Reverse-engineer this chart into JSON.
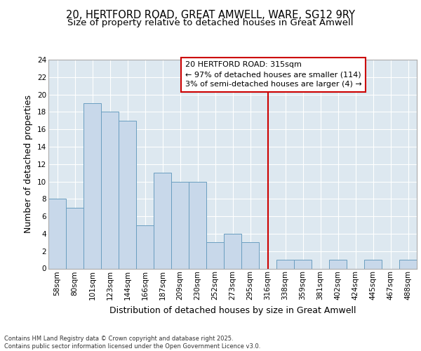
{
  "title1": "20, HERTFORD ROAD, GREAT AMWELL, WARE, SG12 9RY",
  "title2": "Size of property relative to detached houses in Great Amwell",
  "xlabel": "Distribution of detached houses by size in Great Amwell",
  "ylabel": "Number of detached properties",
  "categories": [
    "58sqm",
    "80sqm",
    "101sqm",
    "123sqm",
    "144sqm",
    "166sqm",
    "187sqm",
    "209sqm",
    "230sqm",
    "252sqm",
    "273sqm",
    "295sqm",
    "316sqm",
    "338sqm",
    "359sqm",
    "381sqm",
    "402sqm",
    "424sqm",
    "445sqm",
    "467sqm",
    "488sqm"
  ],
  "values": [
    8,
    7,
    19,
    18,
    17,
    5,
    11,
    10,
    10,
    3,
    4,
    3,
    0,
    1,
    1,
    0,
    1,
    0,
    1,
    0,
    1
  ],
  "bar_color": "#c8d8ea",
  "bar_edge_color": "#6a9ec0",
  "vline_color": "#cc0000",
  "annotation_text": "20 HERTFORD ROAD: 315sqm\n← 97% of detached houses are smaller (114)\n3% of semi-detached houses are larger (4) →",
  "annotation_box_color": "#cc0000",
  "ylim": [
    0,
    24
  ],
  "yticks": [
    0,
    2,
    4,
    6,
    8,
    10,
    12,
    14,
    16,
    18,
    20,
    22,
    24
  ],
  "background_color": "#dde8f0",
  "grid_color": "#ffffff",
  "footer": "Contains HM Land Registry data © Crown copyright and database right 2025.\nContains public sector information licensed under the Open Government Licence v3.0.",
  "title_fontsize": 10.5,
  "subtitle_fontsize": 9.5,
  "tick_fontsize": 7.5,
  "label_fontsize": 9,
  "annotation_fontsize": 8
}
